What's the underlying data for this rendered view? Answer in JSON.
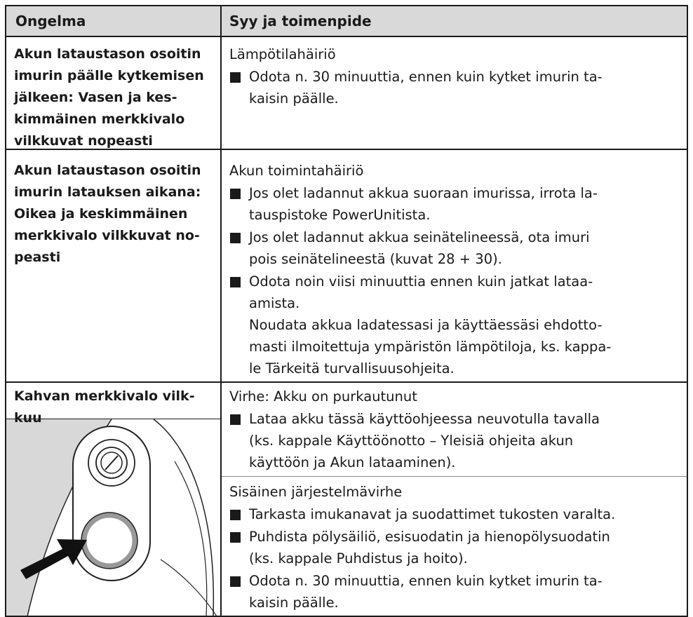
{
  "table": {
    "header": [
      "Ongelma",
      "Syy ja toimenpide"
    ],
    "rows": [
      {
        "problem": [
          "Akun lataustason osoitin",
          "imurin päälle kytkemisen",
          "jälkeen: Vasen ja kes-",
          "kimmäinen merkkivalo",
          "vilkkuvat nopeasti"
        ],
        "causes": [
          {
            "cause": "Lämpötilahäiriö",
            "items": [
              [
                "Odota n. 30 minuuttia, ennen kuin kytket imurin ta-",
                "kaisin päälle."
              ]
            ]
          }
        ]
      },
      {
        "problem": [
          "Akun lataustason osoitin",
          "imurin latauksen aikana:",
          "Oikea ja keskimmäinen",
          "merkkivalo vilkkuvat no-",
          "peasti"
        ],
        "causes": [
          {
            "cause": "Akun toimintahäiriö",
            "items": [
              [
                "Jos olet ladannut akkua suoraan imurissa, irrota la-",
                "tauspistoke PowerUnitista."
              ],
              [
                "Jos olet ladannut akkua seinätelineessä, ota imuri",
                "pois seinätelineestä (kuvat 28 + 30)."
              ],
              [
                "Odota noin viisi minuuttia ennen kuin jatkat lataa-",
                "amista."
              ]
            ],
            "note": [
              "Noudata akkua ladatessasi ja käyttäessäsi ehdotto-",
              "masti ilmoitettuja ympäristön lämpötiloja, ks. kappa-",
              "le Tärkeitä turvallisuusohjeita."
            ]
          }
        ]
      },
      {
        "problem": [
          "Kahvan merkkivalo vilk-",
          "kuu"
        ],
        "causes": [
          {
            "cause": "Virhe: Akku on purkautunut",
            "items": [
              [
                "Lataa akku tässä käyttöohjeessa neuvotulla tavalla",
                "(ks. kappale Käyttöönotto – Yleisiä ohjeita akun",
                "käyttöön ja Akun lataaminen)."
              ]
            ]
          },
          {
            "cause": "Sisäinen järjestelmävirhe",
            "items": [
              [
                "Tarkasta imukanavat ja suodattimet tukosten varalta."
              ],
              [
                "Puhdista pölysäiliö, esisuodatin ja hienopölysuodatin",
                "(ks. kappale Puhdistus ja hoito)."
              ],
              [
                "Odota n. 30 minuuttia, ennen kuin kytket imurin ta-",
                "kaisin päälle."
              ]
            ]
          }
        ]
      }
    ]
  }
}
